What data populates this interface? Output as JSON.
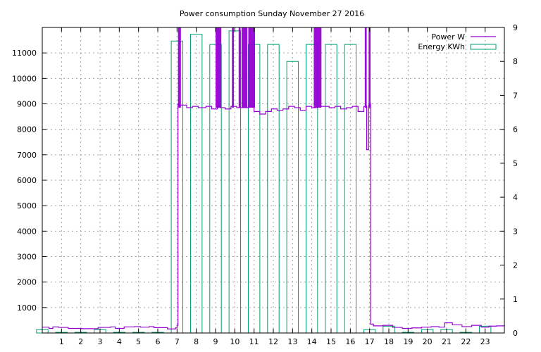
{
  "chart_data": {
    "type": "line",
    "title": "Power consumption Sunday November 27 2016",
    "xlabel": "",
    "ylabel": "",
    "y2label": "",
    "xlim": [
      0,
      24
    ],
    "ylim": [
      0,
      12000
    ],
    "y2lim": [
      0,
      9
    ],
    "grid": true,
    "legend_position": "top-right",
    "x_ticks": [
      1,
      2,
      3,
      4,
      5,
      6,
      7,
      8,
      9,
      10,
      11,
      12,
      13,
      14,
      15,
      16,
      17,
      18,
      19,
      20,
      21,
      22,
      23
    ],
    "y_ticks": [
      1000,
      2000,
      3000,
      4000,
      5000,
      6000,
      7000,
      8000,
      9000,
      10000,
      11000
    ],
    "y2_ticks": [
      0,
      1,
      2,
      3,
      4,
      5,
      6,
      7,
      8,
      9
    ],
    "series": [
      {
        "name": "Power W",
        "style": "line",
        "axis": "y1",
        "color": "#9400d3",
        "x": [
          0,
          0.35,
          0.55,
          0.85,
          1.35,
          2.05,
          2.9,
          3.55,
          3.8,
          4.25,
          4.8,
          5.1,
          5.55,
          5.8,
          6.5,
          6.75,
          6.92,
          7.0,
          7.05,
          7.1,
          7.2,
          7.5,
          7.8,
          8.1,
          8.5,
          8.8,
          9.1,
          9.25,
          9.5,
          9.8,
          10.1,
          10.4,
          10.7,
          11.0,
          11.3,
          11.6,
          11.9,
          12.2,
          12.5,
          12.8,
          13.1,
          13.4,
          13.7,
          14.0,
          14.3,
          14.6,
          14.9,
          15.2,
          15.5,
          15.8,
          16.1,
          16.4,
          16.7,
          16.85,
          16.95,
          17.0,
          17.05,
          17.2,
          17.7,
          18.2,
          18.7,
          19.2,
          19.7,
          20.2,
          20.6,
          20.9,
          21.3,
          21.8,
          22.3,
          22.8,
          23.2,
          23.6,
          24.0
        ],
        "values": [
          230,
          180,
          240,
          220,
          180,
          170,
          220,
          240,
          180,
          240,
          250,
          230,
          250,
          210,
          160,
          160,
          200,
          300,
          9000,
          8950,
          8950,
          8850,
          8900,
          8850,
          8900,
          8800,
          8900,
          8850,
          8800,
          8900,
          8850,
          8850,
          8900,
          8700,
          8600,
          8700,
          8800,
          8750,
          8800,
          8900,
          8850,
          8750,
          8900,
          8850,
          8900,
          8900,
          8850,
          8900,
          8800,
          8850,
          8900,
          8700,
          8900,
          7200,
          8950,
          9000,
          350,
          280,
          300,
          220,
          180,
          200,
          230,
          250,
          230,
          400,
          320,
          250,
          300,
          230,
          270,
          280,
          320
        ],
        "spikes": [
          [
            7.05,
            7.2
          ],
          [
            9.0,
            9.3
          ],
          [
            9.85,
            9.95
          ],
          [
            10.2,
            10.3
          ],
          [
            10.35,
            10.65
          ],
          [
            10.7,
            11.05
          ],
          [
            14.1,
            14.5
          ],
          [
            16.75,
            16.85
          ],
          [
            16.95,
            17.05
          ]
        ]
      },
      {
        "name": "Energy KWh",
        "style": "histeps",
        "axis": "y2",
        "color": "#009e73",
        "x": [
          0,
          1,
          2,
          3,
          4,
          5,
          6,
          7,
          8,
          9,
          10,
          11,
          12,
          13,
          14,
          15,
          16,
          17,
          18,
          19,
          20,
          21,
          22,
          23
        ],
        "values": [
          0.1,
          0.02,
          0.02,
          0.1,
          0.02,
          0.02,
          0.02,
          8.6,
          8.8,
          8.5,
          8.9,
          8.5,
          8.5,
          8.0,
          8.5,
          8.5,
          8.5,
          0.1,
          0.2,
          0.02,
          0.1,
          0.1,
          0.02,
          0.2
        ]
      }
    ]
  }
}
